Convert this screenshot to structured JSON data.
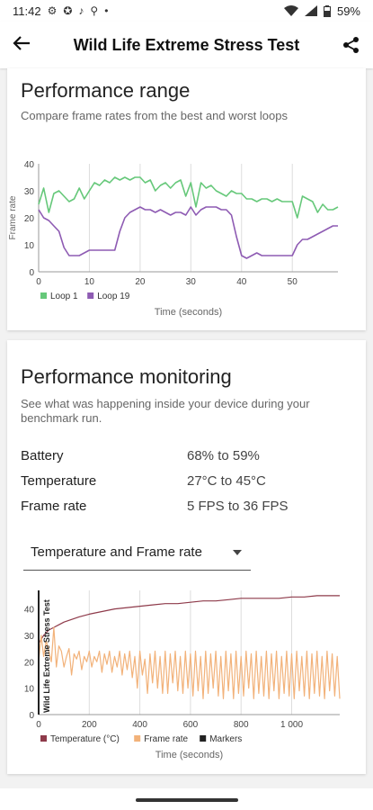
{
  "status": {
    "time": "11:42",
    "dot": "•",
    "battery": "59%"
  },
  "appbar": {
    "title": "Wild Life Extreme Stress Test"
  },
  "card1": {
    "title": "Performance range",
    "subtitle": "Compare frame rates from the best and worst loops"
  },
  "card2": {
    "title": "Performance monitoring",
    "subtitle": "See what was happening inside your device during your benchmark run.",
    "metrics": [
      {
        "label": "Battery",
        "value": "68% to 59%"
      },
      {
        "label": "Temperature",
        "value": "27°C to 45°C"
      },
      {
        "label": "Frame rate",
        "value": "5 FPS to 36 FPS"
      }
    ],
    "dropdown": {
      "selected": "Temperature and Frame rate"
    }
  },
  "chart_data": [
    {
      "type": "line",
      "xlabel": "Time (seconds)",
      "ylabel": "Frame rate",
      "xlim": [
        0,
        59
      ],
      "ylim": [
        0,
        40
      ],
      "xticks": [
        0,
        10,
        20,
        30,
        40,
        50
      ],
      "yticks": [
        0,
        10,
        20,
        30,
        40
      ],
      "grid": "vertical",
      "legend": "bottom-left",
      "series": [
        {
          "name": "Loop 1",
          "color": "#66c87a",
          "x": [
            0,
            1,
            2,
            3,
            4,
            5,
            6,
            7,
            8,
            9,
            10,
            11,
            12,
            13,
            14,
            15,
            16,
            17,
            18,
            19,
            20,
            21,
            22,
            23,
            24,
            25,
            26,
            27,
            28,
            29,
            30,
            31,
            32,
            33,
            34,
            35,
            36,
            37,
            38,
            39,
            40,
            41,
            42,
            43,
            44,
            45,
            46,
            47,
            48,
            49,
            50,
            51,
            52,
            53,
            54,
            55,
            56,
            57,
            58,
            59
          ],
          "y": [
            25,
            31,
            22,
            29,
            30,
            28,
            26,
            27,
            31,
            27,
            30,
            33,
            32,
            34,
            33,
            35,
            34,
            35,
            34,
            35,
            35,
            33,
            34,
            30,
            32,
            33,
            31,
            33,
            34,
            28,
            33,
            24,
            33,
            31,
            32,
            30,
            29,
            28,
            30,
            29,
            29,
            27,
            27,
            26,
            27,
            27,
            26,
            27,
            26,
            26,
            26,
            20,
            28,
            27,
            26,
            22,
            25,
            23,
            23,
            24
          ]
        },
        {
          "name": "Loop 19",
          "color": "#8e5bb3",
          "x": [
            0,
            1,
            2,
            3,
            4,
            5,
            6,
            7,
            8,
            9,
            10,
            11,
            12,
            13,
            14,
            15,
            16,
            17,
            18,
            19,
            20,
            21,
            22,
            23,
            24,
            25,
            26,
            27,
            28,
            29,
            30,
            31,
            32,
            33,
            34,
            35,
            36,
            37,
            38,
            39,
            40,
            41,
            42,
            43,
            44,
            45,
            46,
            47,
            48,
            49,
            50,
            51,
            52,
            53,
            54,
            55,
            56,
            57,
            58,
            59
          ],
          "y": [
            23,
            20,
            19,
            17,
            15,
            9,
            6,
            6,
            6,
            7,
            8,
            8,
            8,
            8,
            8,
            8,
            15,
            20,
            22,
            23,
            24,
            23,
            23,
            22,
            23,
            22,
            21,
            22,
            22,
            21,
            24,
            21,
            23,
            24,
            24,
            24,
            23,
            23,
            21,
            13,
            6,
            5,
            6,
            7,
            6,
            6,
            6,
            6,
            6,
            6,
            6,
            10,
            12,
            12,
            13,
            14,
            15,
            16,
            17,
            17
          ]
        }
      ]
    },
    {
      "type": "line",
      "xlabel": "Time (seconds)",
      "xlim": [
        0,
        1190
      ],
      "ylim": [
        0,
        47
      ],
      "xticks": [
        0,
        200,
        400,
        600,
        800,
        1000
      ],
      "xtick_labels": [
        "0",
        "200",
        "400",
        "600",
        "800",
        "1 000"
      ],
      "yticks": [
        0,
        10,
        20,
        30,
        40
      ],
      "grid": "vertical",
      "legend": "bottom-left",
      "marker": {
        "x": 0,
        "label": "Wild Life Extreme Stress Test"
      },
      "legend_items": [
        {
          "name": "Temperature (°C)",
          "color": "#8e3a4a"
        },
        {
          "name": "Frame rate",
          "color": "#f2b27a"
        },
        {
          "name": "Markers",
          "color": "#222222"
        }
      ],
      "series": [
        {
          "name": "Temperature (°C)",
          "color": "#8e3a4a",
          "x": [
            0,
            20,
            40,
            60,
            80,
            100,
            130,
            160,
            200,
            250,
            300,
            350,
            400,
            450,
            500,
            550,
            600,
            650,
            700,
            750,
            800,
            850,
            900,
            950,
            1000,
            1050,
            1100,
            1150,
            1190
          ],
          "y": [
            27,
            30,
            32,
            33,
            34,
            35,
            36,
            37,
            38,
            39,
            40,
            40.5,
            41,
            41.5,
            42,
            42,
            42.5,
            43,
            43,
            43.5,
            44,
            44,
            44,
            44,
            44.5,
            44.5,
            45,
            45,
            45
          ]
        },
        {
          "name": "Frame rate",
          "color": "#f2b27a",
          "x": [
            0,
            10,
            20,
            30,
            40,
            50,
            60,
            70,
            80,
            90,
            100,
            110,
            120,
            130,
            140,
            150,
            160,
            170,
            180,
            190,
            200,
            210,
            220,
            230,
            240,
            250,
            260,
            270,
            280,
            290,
            300,
            310,
            320,
            330,
            340,
            350,
            360,
            370,
            380,
            390,
            400,
            410,
            420,
            430,
            440,
            450,
            460,
            470,
            480,
            490,
            500,
            510,
            520,
            530,
            540,
            550,
            560,
            570,
            580,
            590,
            600,
            610,
            620,
            630,
            640,
            650,
            660,
            670,
            680,
            690,
            700,
            710,
            720,
            730,
            740,
            750,
            760,
            770,
            780,
            790,
            800,
            810,
            820,
            830,
            840,
            850,
            860,
            870,
            880,
            890,
            900,
            910,
            920,
            930,
            940,
            950,
            960,
            970,
            980,
            990,
            1000,
            1010,
            1020,
            1030,
            1040,
            1050,
            1060,
            1070,
            1080,
            1090,
            1100,
            1110,
            1120,
            1130,
            1140,
            1150,
            1160,
            1170,
            1180,
            1190
          ],
          "y": [
            20,
            30,
            22,
            28,
            24,
            20,
            33,
            18,
            26,
            24,
            18,
            22,
            25,
            15,
            23,
            21,
            24,
            17,
            22,
            20,
            24,
            18,
            22,
            20,
            24,
            16,
            23,
            19,
            24,
            16,
            22,
            18,
            24,
            15,
            23,
            17,
            24,
            14,
            22,
            10,
            24,
            15,
            21,
            8,
            23,
            12,
            24,
            10,
            22,
            8,
            24,
            8,
            23,
            12,
            24,
            9,
            22,
            8,
            24,
            10,
            23,
            7,
            24,
            9,
            22,
            6,
            24,
            8,
            23,
            10,
            24,
            7,
            22,
            6,
            24,
            9,
            23,
            6,
            24,
            8,
            22,
            7,
            24,
            10,
            23,
            6,
            24,
            8,
            22,
            7,
            24,
            6,
            23,
            9,
            24,
            6,
            22,
            8,
            24,
            7,
            23,
            6,
            24,
            9,
            22,
            7,
            24,
            6,
            23,
            8,
            24,
            7,
            22,
            6,
            24,
            9,
            23,
            7,
            22,
            6
          ]
        }
      ]
    }
  ]
}
